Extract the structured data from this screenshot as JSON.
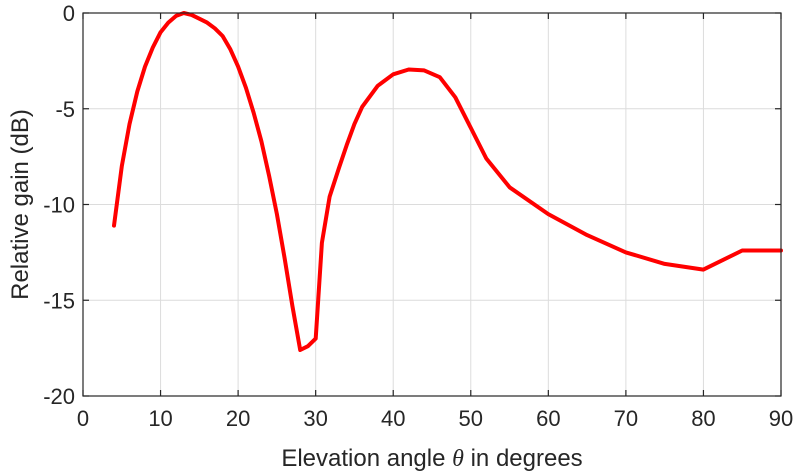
{
  "chart_data": {
    "type": "line",
    "title": "",
    "xlabel_pre": "Elevation angle ",
    "xlabel_symbol": "θ",
    "xlabel_post": " in degrees",
    "ylabel": "Relative gain (dB)",
    "xlim": [
      0,
      90
    ],
    "ylim": [
      -20,
      0
    ],
    "xticks": [
      0,
      10,
      20,
      30,
      40,
      50,
      60,
      70,
      80,
      90
    ],
    "yticks": [
      0,
      -5,
      -10,
      -15,
      -20
    ],
    "grid": true,
    "series": [
      {
        "name": "Relative gain",
        "color": "#ff0000",
        "x": [
          4,
          5,
          6,
          7,
          8,
          9,
          10,
          11,
          12,
          13,
          14,
          15,
          16,
          17,
          18,
          19,
          20,
          21,
          22,
          23,
          24,
          25,
          26,
          27,
          28,
          29,
          30,
          30.8,
          31.8,
          33,
          34,
          35,
          36,
          38,
          40,
          42,
          44,
          46,
          48,
          50,
          52,
          55,
          60,
          65,
          70,
          75,
          80,
          85,
          90
        ],
        "y": [
          -11.1,
          -8.0,
          -5.8,
          -4.1,
          -2.8,
          -1.8,
          -1.0,
          -0.5,
          -0.15,
          0.0,
          -0.1,
          -0.3,
          -0.5,
          -0.8,
          -1.2,
          -1.9,
          -2.8,
          -3.9,
          -5.2,
          -6.7,
          -8.5,
          -10.5,
          -12.8,
          -15.3,
          -17.6,
          -17.4,
          -17.0,
          -12.0,
          -9.6,
          -8.1,
          -6.9,
          -5.8,
          -4.9,
          -3.8,
          -3.2,
          -2.95,
          -3.0,
          -3.35,
          -4.4,
          -6.0,
          -7.6,
          -9.1,
          -10.5,
          -11.6,
          -12.5,
          -13.1,
          -13.4,
          -12.4,
          -12.4
        ]
      }
    ]
  }
}
